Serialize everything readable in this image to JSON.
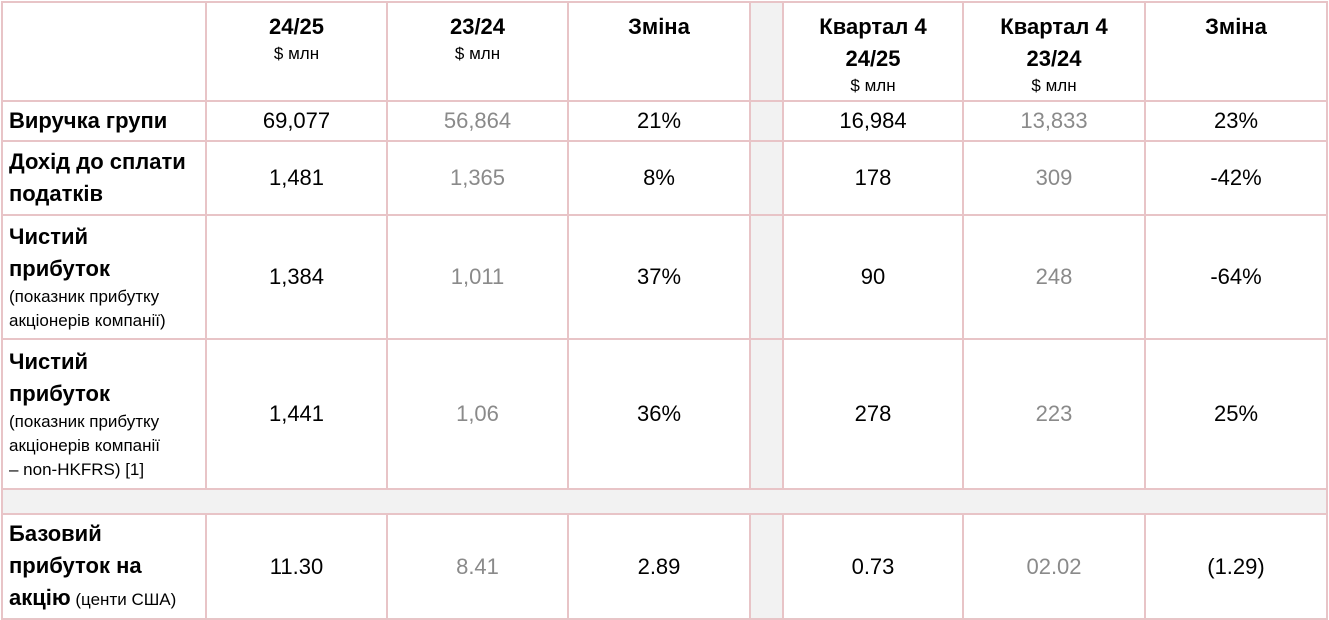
{
  "header": {
    "col1_title": "24/25",
    "col1_unit": "$ млн",
    "col2_title": "23/24",
    "col2_unit": "$ млн",
    "col3_title": "Зміна",
    "col4_title_line1": "Квартал 4",
    "col4_title_line2": "24/25",
    "col4_unit": "$ млн",
    "col5_title_line1": "Квартал 4",
    "col5_title_line2": "23/24",
    "col5_unit": "$ млн",
    "col6_title": "Зміна"
  },
  "rows": [
    {
      "label_bold": "Виручка групи",
      "values": [
        "69,077",
        "56,864",
        "21%",
        "16,984",
        "13,833",
        "23%"
      ]
    },
    {
      "label_bold_1": "Дохід до сплати",
      "label_bold_2": "податків",
      "values": [
        "1,481",
        "1,365",
        "8%",
        "178",
        "309",
        "-42%"
      ]
    },
    {
      "label_bold_1": "Чистий",
      "label_bold_2": "прибуток",
      "label_note_1": "(показник прибутку",
      "label_note_2": "акціонерів компанії)",
      "values": [
        "1,384",
        "1,011",
        "37%",
        "90",
        "248",
        "-64%"
      ]
    },
    {
      "label_bold_1": "Чистий",
      "label_bold_2": "прибуток",
      "label_note_1": "(показник прибутку",
      "label_note_2": "акціонерів компанії",
      "label_note_3": "– non-HKFRS) [1]",
      "values": [
        "1,441",
        "1,06",
        "36%",
        "278",
        "223",
        "25%"
      ]
    },
    {
      "label_bold_1": "Базовий",
      "label_bold_2": "прибуток на",
      "label_bold_3": "акцію",
      "label_note_inline": " (центи США)",
      "values": [
        "11.30",
        "8.41",
        "2.89",
        "0.73",
        "02.02",
        "(1.29)"
      ]
    }
  ]
}
